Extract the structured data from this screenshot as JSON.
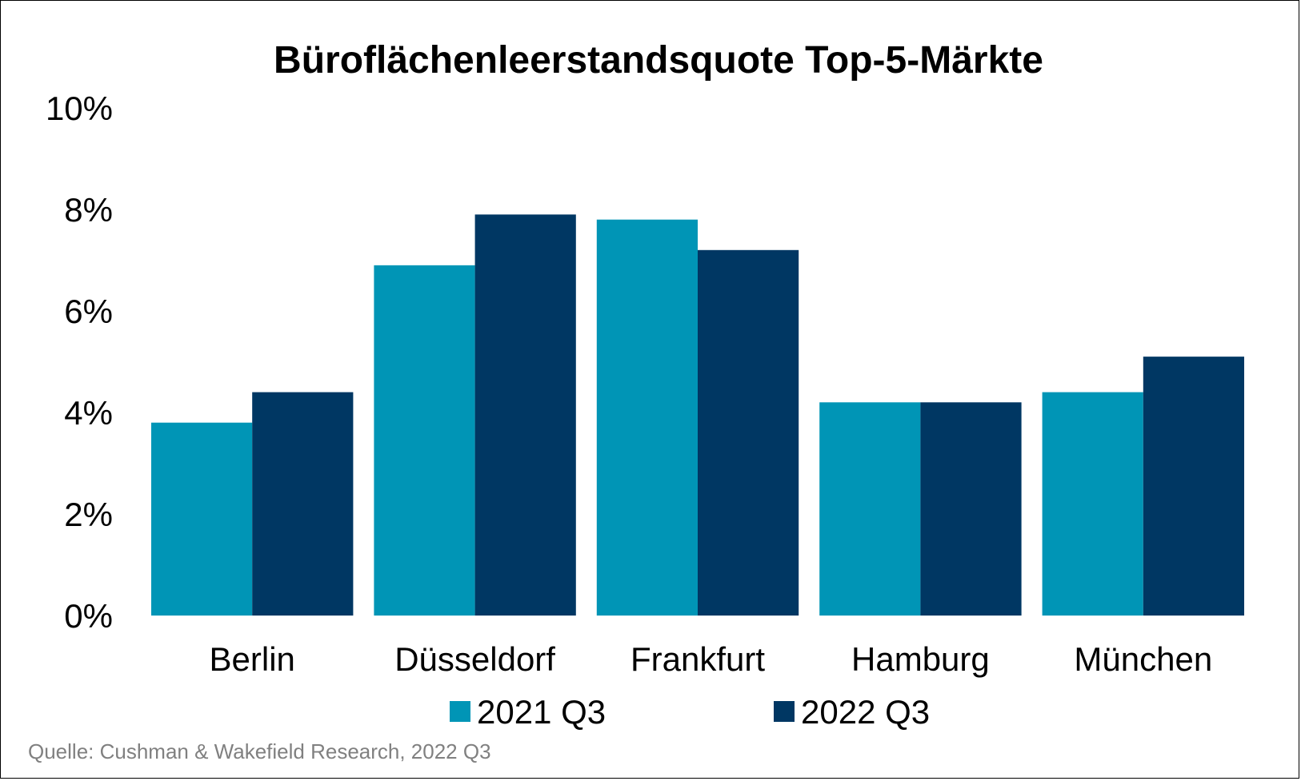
{
  "chart_data": {
    "type": "bar",
    "title": "Büroflächenleerstandsquote Top-5-Märkte",
    "xlabel": "",
    "ylabel": "",
    "categories": [
      "Berlin",
      "Düsseldorf",
      "Frankfurt",
      "Hamburg",
      "München"
    ],
    "series": [
      {
        "name": "2021 Q3",
        "values": [
          3.8,
          6.9,
          7.8,
          4.2,
          4.4
        ],
        "color": "#0095B6"
      },
      {
        "name": "2022 Q3",
        "values": [
          4.4,
          7.9,
          7.2,
          4.2,
          5.1
        ],
        "color": "#003763"
      }
    ],
    "ylim": [
      0,
      10
    ],
    "yticks": [
      0,
      2,
      4,
      6,
      8,
      10
    ],
    "ytick_labels": [
      "0%",
      "2%",
      "4%",
      "6%",
      "8%",
      "10%"
    ],
    "grid": false,
    "legend_position": "bottom",
    "source": "Quelle: Cushman & Wakefield Research, 2022 Q3"
  }
}
